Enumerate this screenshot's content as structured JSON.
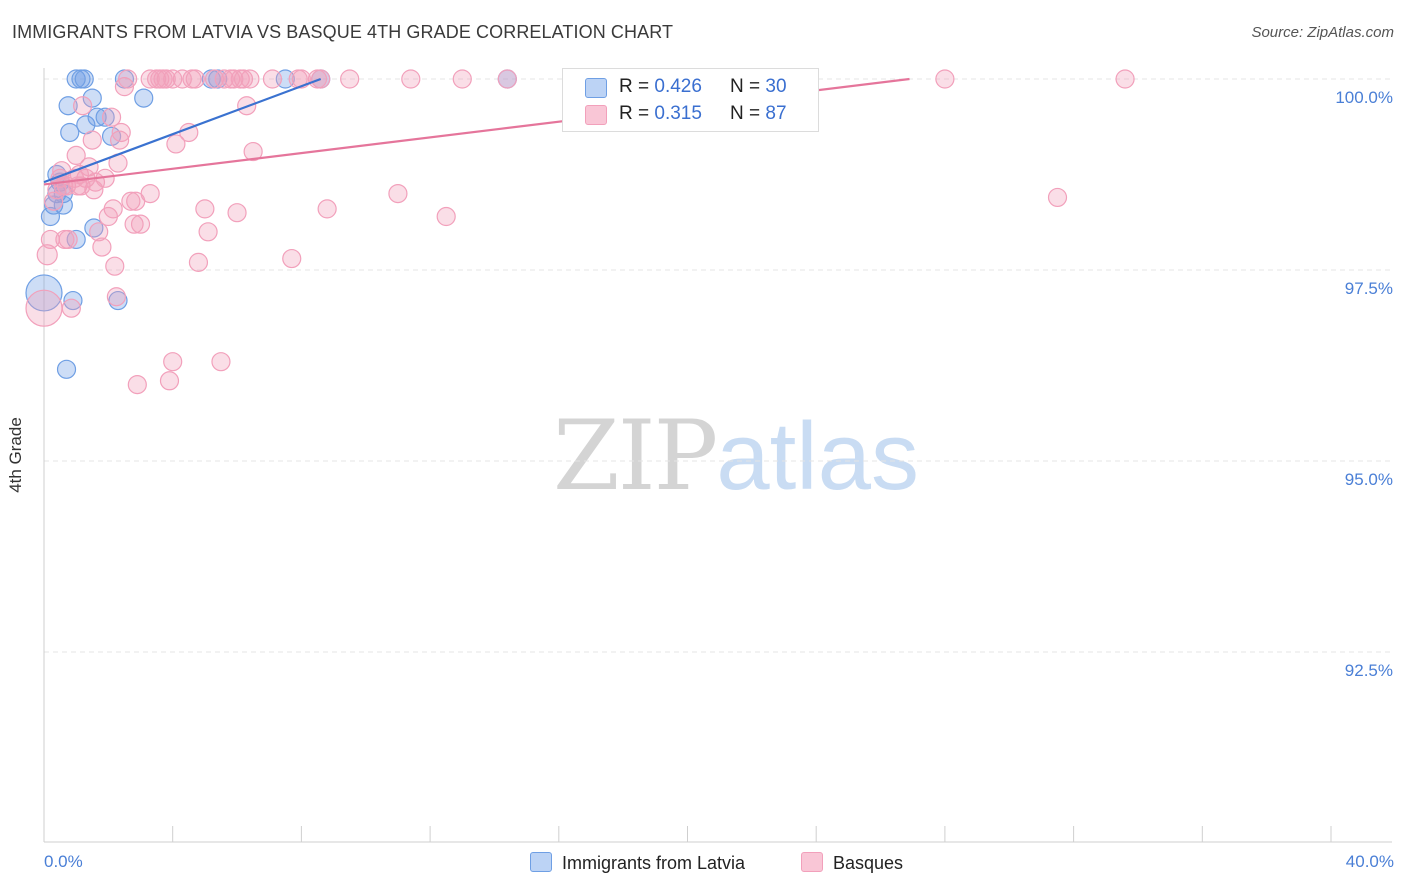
{
  "title": "IMMIGRANTS FROM LATVIA VS BASQUE 4TH GRADE CORRELATION CHART",
  "source": "Source: ZipAtlas.com",
  "watermark": {
    "zip": "ZIP",
    "atlas": "atlas"
  },
  "legend": {
    "rows": [
      {
        "r_label": "R = ",
        "r_value": "0.426",
        "n_label": "N = ",
        "n_value": "30"
      },
      {
        "r_label": "R = ",
        "r_value": "0.315",
        "n_label": "N = ",
        "n_value": "87"
      }
    ]
  },
  "chart_data": {
    "type": "scatter",
    "title": "IMMIGRANTS FROM LATVIA VS BASQUE 4TH GRADE CORRELATION CHART",
    "xlabel": "",
    "ylabel": "4th Grade",
    "xlim": [
      0,
      40
    ],
    "ylim": [
      90.3,
      100.35
    ],
    "x_tick_labels": [
      "0.0%",
      "40.0%"
    ],
    "y_ticks": [
      {
        "value": 100.0,
        "label": "100.0%"
      },
      {
        "value": 97.5,
        "label": "97.5%"
      },
      {
        "value": 95.0,
        "label": "95.0%"
      },
      {
        "value": 92.5,
        "label": "92.5%"
      }
    ],
    "grid": "horizontal dashed",
    "series": [
      {
        "name": "Immigrants from Latvia",
        "color": "#6f9fe4",
        "line_color": "#3a72d0",
        "trend": {
          "x": [
            0.0,
            8.6
          ],
          "y": [
            98.65,
            100.0
          ]
        },
        "points": [
          [
            0.0,
            97.2,
            18
          ],
          [
            0.2,
            98.2,
            9
          ],
          [
            0.3,
            98.35,
            9
          ],
          [
            0.4,
            98.75,
            9
          ],
          [
            0.5,
            98.65,
            9
          ],
          [
            0.6,
            98.5,
            9
          ],
          [
            0.6,
            98.35,
            9
          ],
          [
            0.7,
            96.2,
            9
          ],
          [
            0.75,
            99.65,
            9
          ],
          [
            0.8,
            99.3,
            9
          ],
          [
            0.9,
            97.1,
            9
          ],
          [
            1.0,
            97.9,
            9
          ],
          [
            1.3,
            99.4,
            9
          ],
          [
            1.5,
            99.75,
            9
          ],
          [
            1.55,
            98.05,
            9
          ],
          [
            1.65,
            99.5,
            9
          ],
          [
            1.9,
            99.5,
            9
          ],
          [
            2.1,
            99.25,
            9
          ],
          [
            2.3,
            97.1,
            9
          ],
          [
            2.5,
            100.0,
            9
          ],
          [
            3.1,
            99.75,
            9
          ],
          [
            1.0,
            100.0,
            9
          ],
          [
            1.15,
            100.0,
            9
          ],
          [
            1.25,
            100.0,
            9
          ],
          [
            5.2,
            100.0,
            9
          ],
          [
            5.4,
            100.0,
            9
          ],
          [
            7.5,
            100.0,
            9
          ],
          [
            8.6,
            100.0,
            9
          ],
          [
            14.4,
            100.0,
            9
          ],
          [
            0.4,
            98.5,
            9
          ]
        ]
      },
      {
        "name": "Basques",
        "color": "#f2a0bb",
        "line_color": "#e5759b",
        "trend": {
          "x": [
            0.0,
            26.9
          ],
          "y": [
            98.62,
            100.0
          ]
        },
        "points": [
          [
            0.0,
            97.0,
            18
          ],
          [
            0.1,
            97.7,
            10
          ],
          [
            0.2,
            97.9,
            9
          ],
          [
            0.4,
            98.55,
            9
          ],
          [
            0.5,
            98.7,
            9
          ],
          [
            0.6,
            98.6,
            9
          ],
          [
            0.65,
            97.9,
            9
          ],
          [
            0.7,
            98.6,
            9
          ],
          [
            0.85,
            97.0,
            9
          ],
          [
            0.95,
            98.7,
            9
          ],
          [
            1.0,
            99.0,
            9
          ],
          [
            1.1,
            98.75,
            9
          ],
          [
            1.15,
            98.6,
            9
          ],
          [
            1.2,
            99.65,
            9
          ],
          [
            1.3,
            98.7,
            9
          ],
          [
            1.4,
            98.85,
            9
          ],
          [
            1.5,
            99.2,
            9
          ],
          [
            1.55,
            98.55,
            9
          ],
          [
            1.7,
            98.0,
            9
          ],
          [
            1.8,
            97.8,
            9
          ],
          [
            1.9,
            98.7,
            9
          ],
          [
            2.0,
            98.2,
            9
          ],
          [
            2.1,
            99.5,
            9
          ],
          [
            2.15,
            98.3,
            9
          ],
          [
            2.2,
            97.55,
            9
          ],
          [
            2.25,
            97.15,
            9
          ],
          [
            2.3,
            98.9,
            9
          ],
          [
            2.35,
            99.2,
            9
          ],
          [
            2.4,
            99.3,
            9
          ],
          [
            2.5,
            99.9,
            9
          ],
          [
            2.7,
            98.4,
            9
          ],
          [
            2.8,
            98.1,
            9
          ],
          [
            2.85,
            98.4,
            9
          ],
          [
            2.9,
            96.0,
            9
          ],
          [
            3.0,
            98.1,
            9
          ],
          [
            3.3,
            100.0,
            9
          ],
          [
            3.3,
            98.5,
            9
          ],
          [
            3.5,
            100.0,
            9
          ],
          [
            3.6,
            100.0,
            9
          ],
          [
            3.8,
            100.0,
            9
          ],
          [
            3.9,
            96.05,
            9
          ],
          [
            4.0,
            96.3,
            9
          ],
          [
            4.0,
            100.0,
            9
          ],
          [
            4.1,
            99.15,
            9
          ],
          [
            4.3,
            100.0,
            9
          ],
          [
            4.5,
            99.3,
            9
          ],
          [
            4.7,
            100.0,
            9
          ],
          [
            4.8,
            97.6,
            9
          ],
          [
            5.0,
            98.3,
            9
          ],
          [
            5.1,
            98.0,
            9
          ],
          [
            5.3,
            100.0,
            9
          ],
          [
            5.5,
            96.3,
            9
          ],
          [
            5.6,
            100.0,
            9
          ],
          [
            5.8,
            100.0,
            9
          ],
          [
            6.0,
            98.25,
            9
          ],
          [
            6.2,
            100.0,
            9
          ],
          [
            6.3,
            99.65,
            9
          ],
          [
            6.4,
            100.0,
            9
          ],
          [
            6.5,
            99.05,
            9
          ],
          [
            7.1,
            100.0,
            9
          ],
          [
            7.7,
            97.65,
            9
          ],
          [
            8.0,
            100.0,
            9
          ],
          [
            8.6,
            100.0,
            9
          ],
          [
            8.8,
            98.3,
            9
          ],
          [
            9.5,
            100.0,
            9
          ],
          [
            11.0,
            98.5,
            9
          ],
          [
            11.4,
            100.0,
            9
          ],
          [
            12.5,
            98.2,
            9
          ],
          [
            13.0,
            100.0,
            9
          ],
          [
            14.4,
            100.0,
            9
          ],
          [
            21.0,
            100.0,
            9
          ],
          [
            23.6,
            100.0,
            9
          ],
          [
            28.0,
            100.0,
            9
          ],
          [
            31.5,
            98.45,
            9
          ],
          [
            33.6,
            100.0,
            9
          ],
          [
            0.3,
            98.4,
            9
          ],
          [
            0.75,
            97.9,
            9
          ],
          [
            1.6,
            98.65,
            9
          ],
          [
            2.6,
            100.0,
            9
          ],
          [
            3.7,
            100.0,
            9
          ],
          [
            4.6,
            100.0,
            9
          ],
          [
            5.9,
            100.0,
            9
          ],
          [
            6.1,
            100.0,
            9
          ],
          [
            7.9,
            100.0,
            9
          ],
          [
            8.5,
            100.0,
            9
          ],
          [
            0.55,
            98.8,
            9
          ],
          [
            1.05,
            98.6,
            9
          ]
        ]
      }
    ]
  }
}
